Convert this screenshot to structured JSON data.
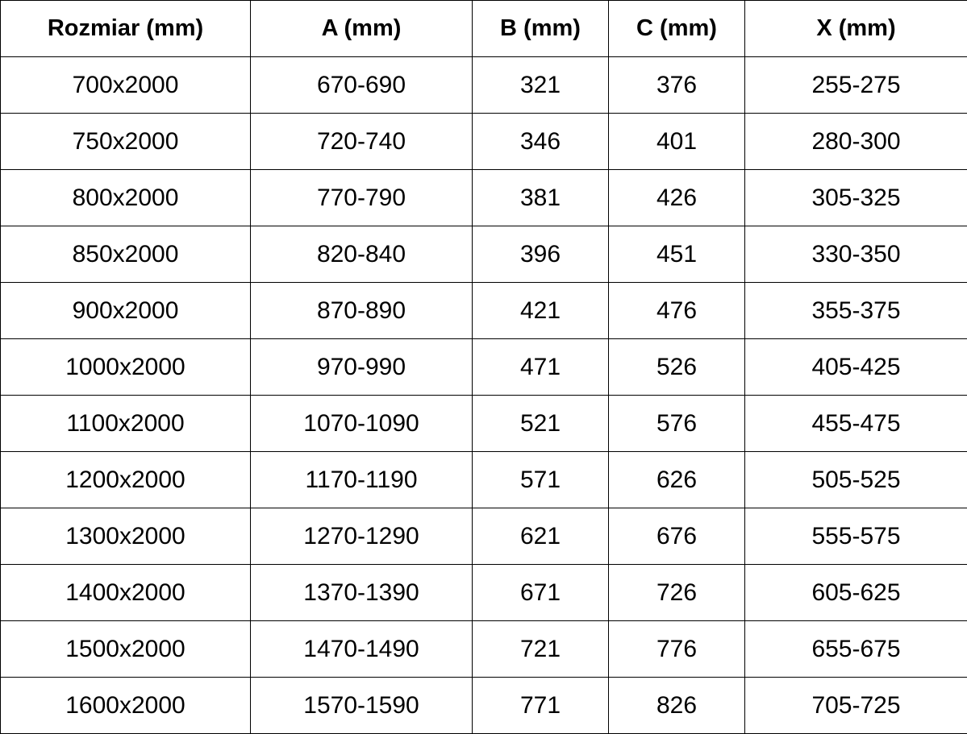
{
  "table": {
    "headers": [
      "Rozmiar (mm)",
      "A (mm)",
      "B (mm)",
      "C (mm)",
      "X (mm)"
    ],
    "rows": [
      [
        "700x2000",
        "670-690",
        "321",
        "376",
        "255-275"
      ],
      [
        "750x2000",
        "720-740",
        "346",
        "401",
        "280-300"
      ],
      [
        "800x2000",
        "770-790",
        "381",
        "426",
        "305-325"
      ],
      [
        "850x2000",
        "820-840",
        "396",
        "451",
        "330-350"
      ],
      [
        "900x2000",
        "870-890",
        "421",
        "476",
        "355-375"
      ],
      [
        "1000x2000",
        "970-990",
        "471",
        "526",
        "405-425"
      ],
      [
        "1100x2000",
        "1070-1090",
        "521",
        "576",
        "455-475"
      ],
      [
        "1200x2000",
        "1170-1190",
        "571",
        "626",
        "505-525"
      ],
      [
        "1300x2000",
        "1270-1290",
        "621",
        "676",
        "555-575"
      ],
      [
        "1400x2000",
        "1370-1390",
        "671",
        "726",
        "605-625"
      ],
      [
        "1500x2000",
        "1470-1490",
        "721",
        "776",
        "655-675"
      ],
      [
        "1600x2000",
        "1570-1590",
        "771",
        "826",
        "705-725"
      ]
    ]
  }
}
